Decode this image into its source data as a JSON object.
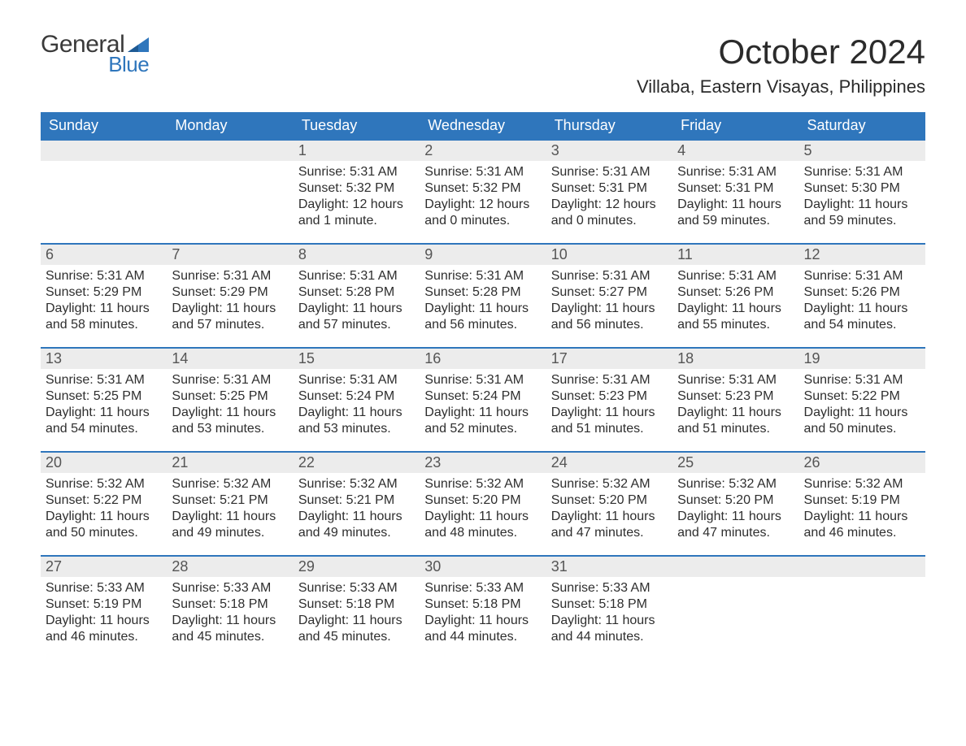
{
  "brand": {
    "line1": "General",
    "line2": "Blue",
    "accent_color": "#2f76bc"
  },
  "title": "October 2024",
  "location": "Villaba, Eastern Visayas, Philippines",
  "colors": {
    "header_bg": "#2f76bc",
    "row_bg": "#ececec",
    "week_border": "#2f76bc",
    "text": "#2b2b2b",
    "background": "#ffffff"
  },
  "typography": {
    "title_fontsize": 42,
    "location_fontsize": 22,
    "header_fontsize": 18,
    "daynum_fontsize": 18,
    "body_fontsize": 16
  },
  "day_headers": [
    "Sunday",
    "Monday",
    "Tuesday",
    "Wednesday",
    "Thursday",
    "Friday",
    "Saturday"
  ],
  "labels": {
    "sunrise": "Sunrise:",
    "sunset": "Sunset:",
    "daylight": "Daylight:"
  },
  "weeks": [
    [
      {
        "empty": true
      },
      {
        "empty": true
      },
      {
        "n": "1",
        "sunrise": "5:31 AM",
        "sunset": "5:32 PM",
        "daylight": "12 hours and 1 minute."
      },
      {
        "n": "2",
        "sunrise": "5:31 AM",
        "sunset": "5:32 PM",
        "daylight": "12 hours and 0 minutes."
      },
      {
        "n": "3",
        "sunrise": "5:31 AM",
        "sunset": "5:31 PM",
        "daylight": "12 hours and 0 minutes."
      },
      {
        "n": "4",
        "sunrise": "5:31 AM",
        "sunset": "5:31 PM",
        "daylight": "11 hours and 59 minutes."
      },
      {
        "n": "5",
        "sunrise": "5:31 AM",
        "sunset": "5:30 PM",
        "daylight": "11 hours and 59 minutes."
      }
    ],
    [
      {
        "n": "6",
        "sunrise": "5:31 AM",
        "sunset": "5:29 PM",
        "daylight": "11 hours and 58 minutes."
      },
      {
        "n": "7",
        "sunrise": "5:31 AM",
        "sunset": "5:29 PM",
        "daylight": "11 hours and 57 minutes."
      },
      {
        "n": "8",
        "sunrise": "5:31 AM",
        "sunset": "5:28 PM",
        "daylight": "11 hours and 57 minutes."
      },
      {
        "n": "9",
        "sunrise": "5:31 AM",
        "sunset": "5:28 PM",
        "daylight": "11 hours and 56 minutes."
      },
      {
        "n": "10",
        "sunrise": "5:31 AM",
        "sunset": "5:27 PM",
        "daylight": "11 hours and 56 minutes."
      },
      {
        "n": "11",
        "sunrise": "5:31 AM",
        "sunset": "5:26 PM",
        "daylight": "11 hours and 55 minutes."
      },
      {
        "n": "12",
        "sunrise": "5:31 AM",
        "sunset": "5:26 PM",
        "daylight": "11 hours and 54 minutes."
      }
    ],
    [
      {
        "n": "13",
        "sunrise": "5:31 AM",
        "sunset": "5:25 PM",
        "daylight": "11 hours and 54 minutes."
      },
      {
        "n": "14",
        "sunrise": "5:31 AM",
        "sunset": "5:25 PM",
        "daylight": "11 hours and 53 minutes."
      },
      {
        "n": "15",
        "sunrise": "5:31 AM",
        "sunset": "5:24 PM",
        "daylight": "11 hours and 53 minutes."
      },
      {
        "n": "16",
        "sunrise": "5:31 AM",
        "sunset": "5:24 PM",
        "daylight": "11 hours and 52 minutes."
      },
      {
        "n": "17",
        "sunrise": "5:31 AM",
        "sunset": "5:23 PM",
        "daylight": "11 hours and 51 minutes."
      },
      {
        "n": "18",
        "sunrise": "5:31 AM",
        "sunset": "5:23 PM",
        "daylight": "11 hours and 51 minutes."
      },
      {
        "n": "19",
        "sunrise": "5:31 AM",
        "sunset": "5:22 PM",
        "daylight": "11 hours and 50 minutes."
      }
    ],
    [
      {
        "n": "20",
        "sunrise": "5:32 AM",
        "sunset": "5:22 PM",
        "daylight": "11 hours and 50 minutes."
      },
      {
        "n": "21",
        "sunrise": "5:32 AM",
        "sunset": "5:21 PM",
        "daylight": "11 hours and 49 minutes."
      },
      {
        "n": "22",
        "sunrise": "5:32 AM",
        "sunset": "5:21 PM",
        "daylight": "11 hours and 49 minutes."
      },
      {
        "n": "23",
        "sunrise": "5:32 AM",
        "sunset": "5:20 PM",
        "daylight": "11 hours and 48 minutes."
      },
      {
        "n": "24",
        "sunrise": "5:32 AM",
        "sunset": "5:20 PM",
        "daylight": "11 hours and 47 minutes."
      },
      {
        "n": "25",
        "sunrise": "5:32 AM",
        "sunset": "5:20 PM",
        "daylight": "11 hours and 47 minutes."
      },
      {
        "n": "26",
        "sunrise": "5:32 AM",
        "sunset": "5:19 PM",
        "daylight": "11 hours and 46 minutes."
      }
    ],
    [
      {
        "n": "27",
        "sunrise": "5:33 AM",
        "sunset": "5:19 PM",
        "daylight": "11 hours and 46 minutes."
      },
      {
        "n": "28",
        "sunrise": "5:33 AM",
        "sunset": "5:18 PM",
        "daylight": "11 hours and 45 minutes."
      },
      {
        "n": "29",
        "sunrise": "5:33 AM",
        "sunset": "5:18 PM",
        "daylight": "11 hours and 45 minutes."
      },
      {
        "n": "30",
        "sunrise": "5:33 AM",
        "sunset": "5:18 PM",
        "daylight": "11 hours and 44 minutes."
      },
      {
        "n": "31",
        "sunrise": "5:33 AM",
        "sunset": "5:18 PM",
        "daylight": "11 hours and 44 minutes."
      },
      {
        "empty": true
      },
      {
        "empty": true
      }
    ]
  ]
}
